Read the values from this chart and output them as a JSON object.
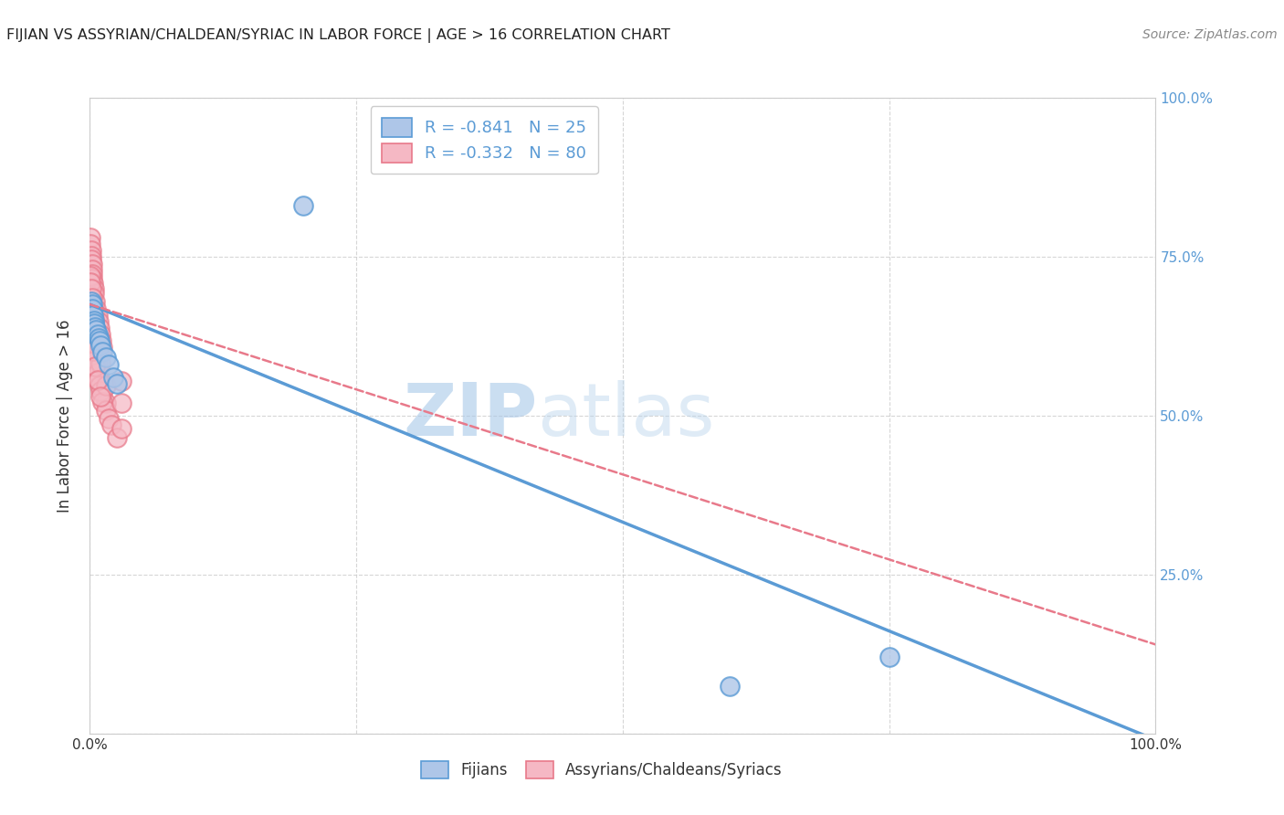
{
  "title": "FIJIAN VS ASSYRIAN/CHALDEAN/SYRIAC IN LABOR FORCE | AGE > 16 CORRELATION CHART",
  "source": "Source: ZipAtlas.com",
  "ylabel": "In Labor Force | Age > 16",
  "xlim": [
    0,
    1.0
  ],
  "ylim": [
    0,
    1.0
  ],
  "watermark_zip": "ZIP",
  "watermark_atlas": "atlas",
  "legend_entry_blue": "R = -0.841   N = 25",
  "legend_entry_pink": "R = -0.332   N = 80",
  "legend_labels_bottom": [
    "Fijians",
    "Assyrians/Chaldeans/Syriacs"
  ],
  "blue_line_x": [
    0.0,
    1.0
  ],
  "blue_line_y": [
    0.675,
    -0.01
  ],
  "pink_line_x": [
    0.0,
    1.0
  ],
  "pink_line_y": [
    0.675,
    0.14
  ],
  "blue_color": "#5b9bd5",
  "pink_color": "#e8798a",
  "blue_fill": "#aec6e8",
  "pink_fill": "#f5b8c4",
  "grid_color": "#cccccc",
  "right_axis_color": "#5b9bd5",
  "background_color": "#ffffff",
  "fijian_x": [
    0.0008,
    0.001,
    0.0012,
    0.0015,
    0.0018,
    0.002,
    0.0022,
    0.0025,
    0.003,
    0.0035,
    0.004,
    0.005,
    0.006,
    0.007,
    0.008,
    0.009,
    0.01,
    0.012,
    0.015,
    0.018,
    0.022,
    0.025,
    0.2,
    0.6,
    0.75
  ],
  "fijian_y": [
    0.67,
    0.665,
    0.672,
    0.68,
    0.66,
    0.675,
    0.655,
    0.668,
    0.658,
    0.65,
    0.645,
    0.64,
    0.635,
    0.628,
    0.622,
    0.618,
    0.61,
    0.6,
    0.592,
    0.58,
    0.56,
    0.55,
    0.83,
    0.075,
    0.12
  ],
  "assyrian_x": [
    0.0005,
    0.0008,
    0.001,
    0.0012,
    0.0015,
    0.0018,
    0.002,
    0.0022,
    0.0025,
    0.003,
    0.0035,
    0.004,
    0.005,
    0.006,
    0.007,
    0.008,
    0.009,
    0.01,
    0.011,
    0.012,
    0.0005,
    0.0008,
    0.001,
    0.0012,
    0.0015,
    0.0018,
    0.002,
    0.0022,
    0.0025,
    0.003,
    0.0035,
    0.004,
    0.005,
    0.006,
    0.007,
    0.008,
    0.009,
    0.01,
    0.012,
    0.015,
    0.0005,
    0.0008,
    0.001,
    0.0012,
    0.0015,
    0.002,
    0.0025,
    0.003,
    0.004,
    0.005,
    0.006,
    0.007,
    0.008,
    0.009,
    0.01,
    0.012,
    0.015,
    0.018,
    0.02,
    0.025,
    0.0005,
    0.0008,
    0.001,
    0.002,
    0.003,
    0.004,
    0.005,
    0.007,
    0.01,
    0.015,
    0.0005,
    0.001,
    0.002,
    0.003,
    0.005,
    0.007,
    0.01,
    0.03,
    0.03,
    0.03
  ],
  "assyrian_y": [
    0.78,
    0.77,
    0.76,
    0.752,
    0.745,
    0.738,
    0.73,
    0.722,
    0.715,
    0.708,
    0.7,
    0.692,
    0.68,
    0.668,
    0.658,
    0.648,
    0.638,
    0.628,
    0.618,
    0.608,
    0.69,
    0.68,
    0.672,
    0.665,
    0.66,
    0.655,
    0.648,
    0.642,
    0.635,
    0.628,
    0.62,
    0.612,
    0.6,
    0.59,
    0.58,
    0.57,
    0.56,
    0.55,
    0.535,
    0.52,
    0.66,
    0.655,
    0.65,
    0.645,
    0.638,
    0.628,
    0.62,
    0.612,
    0.598,
    0.588,
    0.578,
    0.568,
    0.558,
    0.548,
    0.538,
    0.522,
    0.508,
    0.495,
    0.485,
    0.465,
    0.72,
    0.71,
    0.7,
    0.685,
    0.668,
    0.652,
    0.638,
    0.612,
    0.582,
    0.548,
    0.64,
    0.628,
    0.615,
    0.602,
    0.578,
    0.556,
    0.53,
    0.555,
    0.52,
    0.48
  ]
}
